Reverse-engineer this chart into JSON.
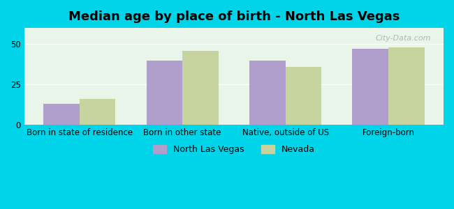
{
  "title": "Median age by place of birth - North Las Vegas",
  "categories": [
    "Born in state of residence",
    "Born in other state",
    "Native, outside of US",
    "Foreign-born"
  ],
  "nlv_values": [
    13,
    40,
    40,
    47
  ],
  "nevada_values": [
    16,
    46,
    36,
    48
  ],
  "nlv_color": "#b09fcc",
  "nevada_color": "#c8d4a0",
  "background_outer": "#00d4e8",
  "background_inner": "#e8f5e8",
  "ylim": [
    0,
    60
  ],
  "yticks": [
    0,
    25,
    50
  ],
  "bar_width": 0.35,
  "legend_labels": [
    "North Las Vegas",
    "Nevada"
  ],
  "title_fontsize": 13,
  "tick_fontsize": 8.5,
  "legend_fontsize": 9
}
